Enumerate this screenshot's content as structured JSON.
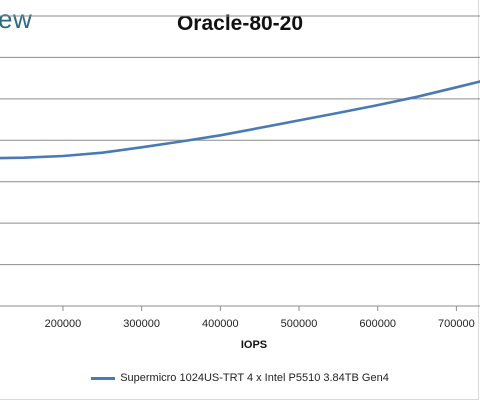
{
  "logo_text": "ew",
  "chart_data": {
    "type": "line",
    "title": "Oracle-80-20",
    "xlabel": "IOPS",
    "ylabel": "",
    "xlim": [
      120000,
      730000
    ],
    "ylim": [
      0,
      7
    ],
    "x_ticks": [
      200000,
      300000,
      400000,
      500000,
      600000,
      700000
    ],
    "x_tick_labels": [
      "200000",
      "300000",
      "400000",
      "500000",
      "600000",
      "700000"
    ],
    "grid": true,
    "legend_position": "bottom",
    "colors": {
      "series": "#4a7ab5",
      "grid": "#8c8c8c"
    },
    "series": [
      {
        "name": "Supermicro 1024US-TRT 4 x Intel P5510 3.84TB Gen4",
        "x": [
          120000,
          150000,
          200000,
          250000,
          300000,
          350000,
          400000,
          450000,
          500000,
          550000,
          600000,
          650000,
          700000,
          730000
        ],
        "y": [
          3.57,
          3.58,
          3.62,
          3.7,
          3.83,
          3.97,
          4.12,
          4.3,
          4.48,
          4.66,
          4.85,
          5.05,
          5.28,
          5.42
        ]
      }
    ]
  }
}
